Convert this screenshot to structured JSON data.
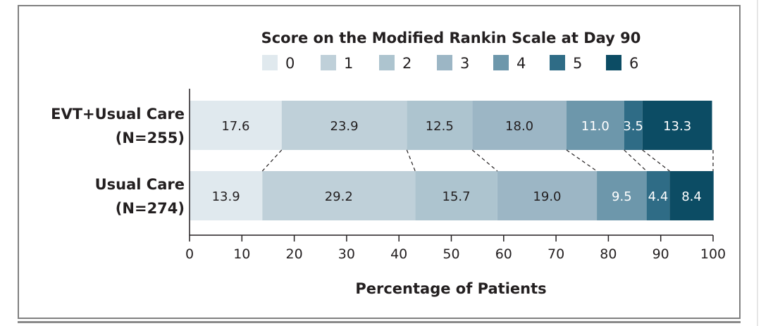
{
  "chart_data": {
    "type": "bar",
    "orientation": "horizontal",
    "stacked": true,
    "legend_title": "Score on the Modified Rankin Scale at Day 90",
    "legend_placement": "top",
    "xlabel": "Percentage of Patients",
    "ylabel": "",
    "xlim": [
      0,
      100
    ],
    "xticks": [
      "0",
      "10",
      "20",
      "30",
      "40",
      "50",
      "60",
      "70",
      "80",
      "90",
      "100"
    ],
    "grid": false,
    "categories": [
      "EVT+Usual Care",
      "Usual Care"
    ],
    "category_sublabels": [
      "(N=255)",
      "(N=274)"
    ],
    "series": [
      {
        "name": "0",
        "color": "#e0e9ee",
        "values": [
          17.6,
          13.9
        ]
      },
      {
        "name": "1",
        "color": "#bfd0d9",
        "values": [
          23.9,
          29.2
        ]
      },
      {
        "name": "2",
        "color": "#adc4cf",
        "values": [
          12.5,
          15.7
        ]
      },
      {
        "name": "3",
        "color": "#9cb6c5",
        "values": [
          18.0,
          19.0
        ]
      },
      {
        "name": "4",
        "color": "#6d97ab",
        "values": [
          11.0,
          9.5
        ]
      },
      {
        "name": "5",
        "color": "#2f6c86",
        "values": [
          3.5,
          4.4
        ]
      },
      {
        "name": "6",
        "color": "#0c4c64",
        "values": [
          13.3,
          8.4
        ]
      }
    ],
    "value_labels": [
      [
        "17.6",
        "23.9",
        "12.5",
        "18.0",
        "11.0",
        "3.5",
        "13.3"
      ],
      [
        "13.9",
        "29.2",
        "15.7",
        "19.0",
        "9.5",
        "4.4",
        "8.4"
      ]
    ]
  }
}
